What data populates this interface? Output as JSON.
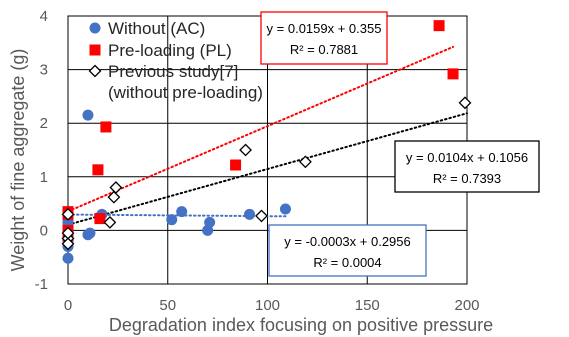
{
  "chart_data": {
    "type": "scatter",
    "xlabel": "Degradation index focusing on positive pressure",
    "ylabel": "Weight of fine aggregate (g)",
    "xlim": [
      0,
      200
    ],
    "ylim": [
      -1,
      4
    ],
    "x_ticks": [
      0,
      50,
      100,
      150,
      200
    ],
    "y_ticks": [
      -1,
      0,
      1,
      2,
      3,
      4
    ],
    "grid": true,
    "legend_position": "top-left",
    "series": [
      {
        "name": "Without (AC)",
        "marker": "circle",
        "color": "#4472C4",
        "x": [
          0,
          0,
          0,
          0,
          0,
          0,
          0,
          16,
          17,
          11,
          52,
          57,
          70,
          71,
          91,
          109
        ],
        "y": [
          -0.52,
          0.35,
          0.2,
          0.15,
          0.1,
          -0.2,
          -0.3,
          0.25,
          0.3,
          -0.05,
          0.2,
          0.35,
          0.0,
          0.15,
          0.3,
          0.4
        ],
        "extra_points": {
          "x": [
            10,
            10
          ],
          "y": [
            2.15,
            -0.08
          ]
        }
      },
      {
        "name": "Pre-loading (PL)",
        "marker": "square",
        "color": "#FF0000",
        "x": [
          0,
          0,
          0,
          0,
          16,
          19,
          15,
          84,
          186,
          193
        ],
        "y": [
          0.35,
          0.3,
          0.0,
          -0.1,
          0.22,
          1.93,
          1.13,
          1.22,
          3.82,
          2.92
        ]
      },
      {
        "name": "Previous study[7]\n(without pre-loading)",
        "marker": "diamond",
        "color": "#000000",
        "x": [
          0,
          0,
          0,
          0,
          23,
          24,
          21,
          89,
          97,
          119,
          199
        ],
        "y": [
          0.3,
          -0.15,
          -0.25,
          -0.05,
          0.62,
          0.8,
          0.15,
          1.5,
          0.27,
          1.28,
          2.38
        ]
      }
    ],
    "trendlines": [
      {
        "series": "Pre-loading (PL)",
        "color": "#FF0000",
        "slope": 0.0159,
        "intercept": 0.355,
        "x_range": [
          0,
          193
        ]
      },
      {
        "series": "Previous study[7]",
        "color": "#000000",
        "slope": 0.0104,
        "intercept": 0.1056,
        "x_range": [
          0,
          200
        ]
      },
      {
        "series": "Without (AC)",
        "color": "#4472C4",
        "slope": -0.0003,
        "intercept": 0.2956,
        "x_range": [
          0,
          109
        ]
      }
    ],
    "annotations": [
      {
        "id": "pl",
        "border": "#FF0000",
        "line1": "y = 0.0159x + 0.355",
        "line2": "R² = 0.7881"
      },
      {
        "id": "prev",
        "border": "#000000",
        "line1": "y = 0.0104x + 0.1056",
        "line2": "R² = 0.7393"
      },
      {
        "id": "ac",
        "border": "#4472C4",
        "line1": "y = -0.0003x + 0.2956",
        "line2": "R² = 0.0004"
      }
    ],
    "legend": [
      {
        "label": "Without (AC)",
        "marker": "circle"
      },
      {
        "label": "Pre-loading (PL)",
        "marker": "square"
      },
      {
        "label": "Previous study[7]",
        "marker": "diamond"
      },
      {
        "label": "(without pre-loading)",
        "marker": "none"
      }
    ]
  }
}
